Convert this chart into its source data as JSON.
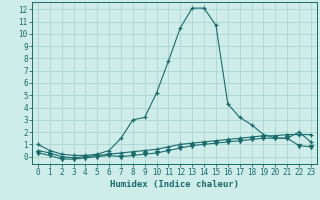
{
  "xlabel": "Humidex (Indice chaleur)",
  "bg_color": "#ceecea",
  "grid_color": "#b0d8d4",
  "line_color": "#1a6b6b",
  "x_values": [
    0,
    1,
    2,
    3,
    4,
    5,
    6,
    7,
    8,
    9,
    10,
    11,
    12,
    13,
    14,
    15,
    16,
    17,
    18,
    19,
    20,
    21,
    22,
    23
  ],
  "main_line": [
    1.0,
    0.5,
    0.2,
    0.1,
    0.1,
    0.2,
    0.5,
    1.5,
    3.0,
    3.2,
    5.2,
    7.8,
    10.5,
    12.1,
    12.1,
    10.7,
    4.3,
    3.2,
    2.6,
    1.8,
    1.5,
    1.5,
    2.0,
    1.2
  ],
  "flat_line1": [
    0.5,
    0.3,
    0.0,
    -0.1,
    0.0,
    0.1,
    0.2,
    0.3,
    0.4,
    0.5,
    0.6,
    0.8,
    1.0,
    1.1,
    1.2,
    1.3,
    1.4,
    1.5,
    1.6,
    1.7,
    1.7,
    1.8,
    1.8,
    1.8
  ],
  "flat_line2": [
    0.3,
    0.1,
    -0.2,
    -0.2,
    -0.1,
    0.0,
    0.1,
    0.0,
    0.1,
    0.2,
    0.3,
    0.5,
    0.7,
    0.9,
    1.0,
    1.1,
    1.2,
    1.3,
    1.4,
    1.5,
    1.5,
    1.5,
    0.9,
    0.8
  ],
  "ylim": [
    -0.6,
    12.6
  ],
  "yticks": [
    0,
    1,
    2,
    3,
    4,
    5,
    6,
    7,
    8,
    9,
    10,
    11,
    12
  ],
  "xticks": [
    0,
    1,
    2,
    3,
    4,
    5,
    6,
    7,
    8,
    9,
    10,
    11,
    12,
    13,
    14,
    15,
    16,
    17,
    18,
    19,
    20,
    21,
    22,
    23
  ]
}
